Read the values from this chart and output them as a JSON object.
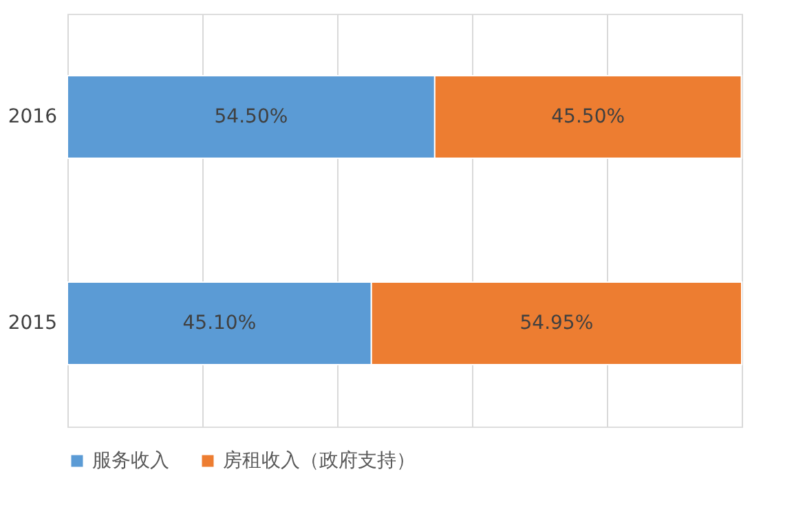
{
  "chart_data": {
    "type": "bar",
    "orientation": "horizontal",
    "stacked": true,
    "categories": [
      "2016",
      "2015"
    ],
    "series": [
      {
        "name": "服务收入",
        "color": "#5b9bd5",
        "values": [
          54.5,
          45.1
        ],
        "value_labels": [
          "54.50%",
          "45.10%"
        ]
      },
      {
        "name": "房租收入（政府支持）",
        "color": "#ed7d31",
        "values": [
          45.5,
          54.95
        ],
        "value_labels": [
          "45.50%",
          "54.95%"
        ]
      }
    ],
    "tick_labels": "y",
    "grid": "x",
    "legend": "bottom"
  }
}
